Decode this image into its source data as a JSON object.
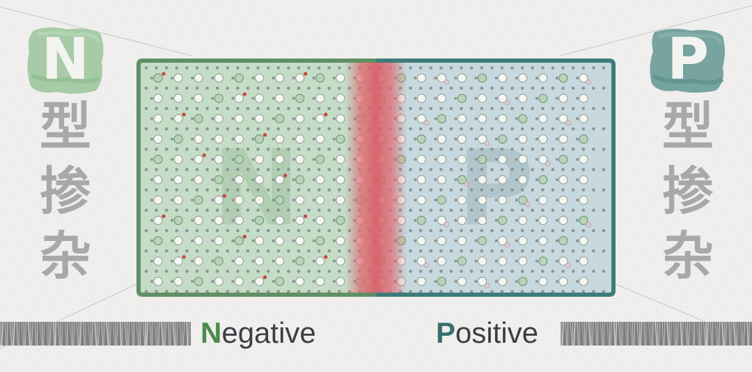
{
  "left_side": {
    "letter": "N",
    "chars": [
      "型",
      "掺",
      "杂"
    ]
  },
  "right_side": {
    "letter": "P",
    "chars": [
      "型",
      "掺",
      "杂"
    ]
  },
  "bottom": {
    "negative_initial": "N",
    "negative_rest": "egative",
    "positive_initial": "P",
    "positive_rest": "ositive"
  },
  "colors": {
    "n_region": "#c5dcc6",
    "n_border": "#5f9063",
    "p_region": "#c7d8df",
    "p_border": "#3e7c7a",
    "junction": "#e06a72",
    "electron": "#c9433f",
    "hole": "#d9a0a6",
    "label_gray": "#a8a9a7"
  }
}
